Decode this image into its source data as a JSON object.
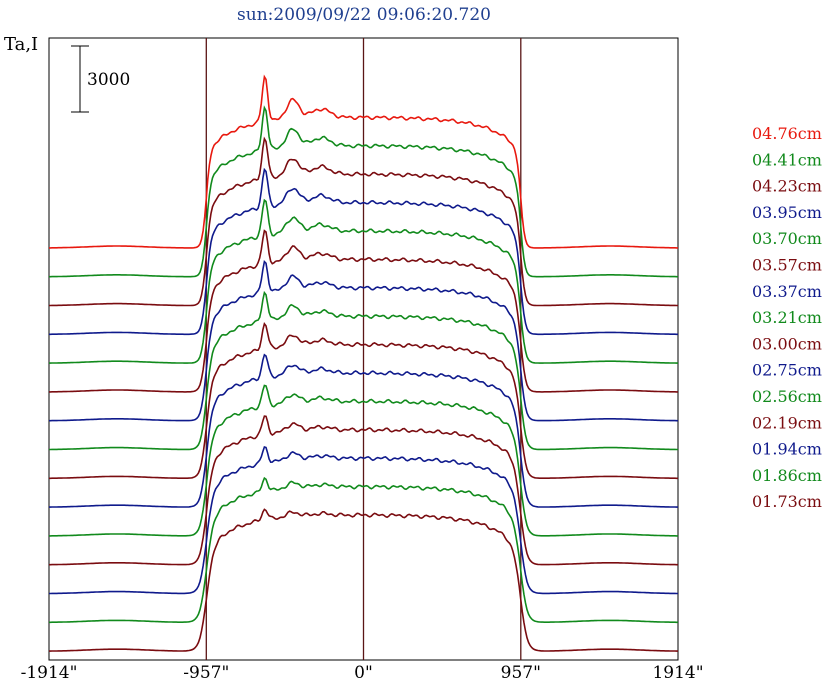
{
  "chart_data": {
    "type": "line",
    "title": "sun:2009/09/22 09:06:20.720",
    "ylabel": "Ta,I",
    "scale_bar_label": "3000",
    "x_ticks": [
      {
        "value": -1914,
        "label": "-1914\""
      },
      {
        "value": -957,
        "label": "-957\""
      },
      {
        "value": 0,
        "label": "0\""
      },
      {
        "value": 957,
        "label": "957\""
      },
      {
        "value": 1914,
        "label": "1914\""
      }
    ],
    "xlim": [
      -1914,
      1914
    ],
    "vertical_markers": [
      -957,
      0,
      957
    ],
    "grid": false,
    "legend_position": "right",
    "colors": {
      "red": "#e8190f",
      "green": "#118a1c",
      "darkred": "#7a0c10",
      "blue": "#0f1a8c",
      "axis": "#000000",
      "marker": "#5a1515"
    },
    "series": [
      {
        "name": "04.76cm",
        "color": "#e8190f"
      },
      {
        "name": "04.41cm",
        "color": "#118a1c"
      },
      {
        "name": "04.23cm",
        "color": "#7a0c10"
      },
      {
        "name": "03.95cm",
        "color": "#0f1a8c"
      },
      {
        "name": "03.70cm",
        "color": "#118a1c"
      },
      {
        "name": "03.57cm",
        "color": "#7a0c10"
      },
      {
        "name": "03.37cm",
        "color": "#0f1a8c"
      },
      {
        "name": "03.21cm",
        "color": "#118a1c"
      },
      {
        "name": "03.00cm",
        "color": "#7a0c10"
      },
      {
        "name": "02.75cm",
        "color": "#0f1a8c"
      },
      {
        "name": "02.56cm",
        "color": "#118a1c"
      },
      {
        "name": "02.19cm",
        "color": "#7a0c10"
      },
      {
        "name": "01.94cm",
        "color": "#0f1a8c"
      },
      {
        "name": "01.86cm",
        "color": "#118a1c"
      },
      {
        "name": "01.73cm",
        "color": "#7a0c10"
      }
    ]
  }
}
